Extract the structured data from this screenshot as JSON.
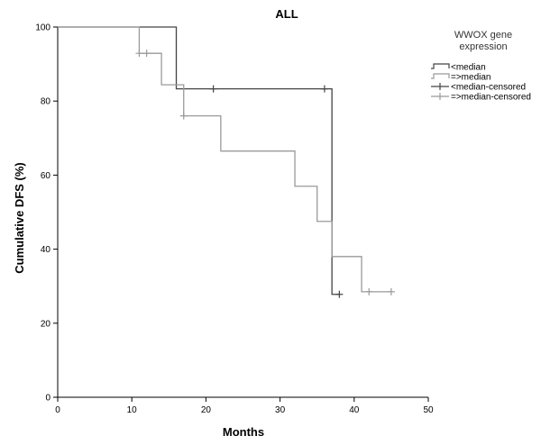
{
  "chart_data": {
    "type": "line",
    "title": "ALL",
    "xlabel": "Months",
    "ylabel": "Cumulative DFS (%)",
    "xlim": [
      0,
      50
    ],
    "ylim": [
      0,
      100
    ],
    "xticks": [
      0,
      10,
      20,
      30,
      40,
      50
    ],
    "yticks": [
      0,
      20,
      40,
      60,
      80,
      100
    ],
    "grid": false,
    "legend": {
      "title_lines": [
        "WWOX gene",
        "expression"
      ],
      "placement": "top-right"
    },
    "series": [
      {
        "name": "<median",
        "color": "#444444",
        "step_x": [
          0,
          16,
          37,
          38
        ],
        "step_y": [
          100,
          83.3,
          27.8,
          27.8
        ]
      },
      {
        "name": "=>median",
        "color": "#9a9a9a",
        "step_x": [
          0,
          11,
          14,
          17,
          22,
          32,
          35,
          37,
          41,
          45
        ],
        "step_y": [
          100,
          92.9,
          84.4,
          76.0,
          66.5,
          57.0,
          47.5,
          38.0,
          28.5,
          28.5
        ]
      },
      {
        "name": "<median-censored",
        "color": "#444444",
        "censored_x": [
          21,
          36,
          38
        ],
        "censored_y": [
          83.3,
          83.3,
          27.8
        ]
      },
      {
        "name": "=>median-censored",
        "color": "#9a9a9a",
        "censored_x": [
          11,
          12,
          17,
          42,
          45
        ],
        "censored_y": [
          92.9,
          92.9,
          76.0,
          28.5,
          28.5
        ]
      }
    ]
  }
}
